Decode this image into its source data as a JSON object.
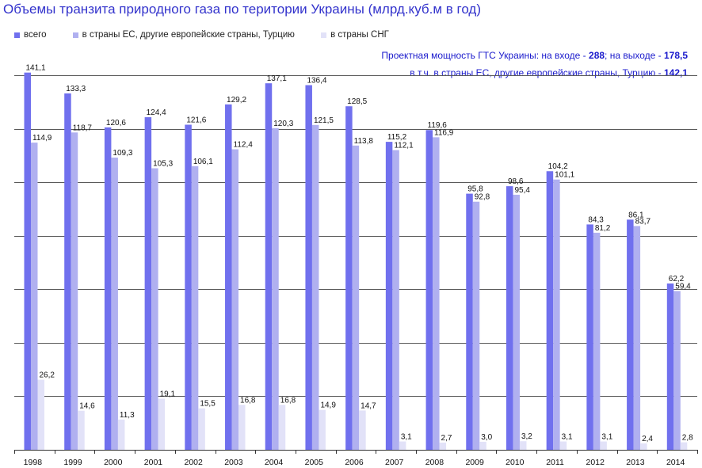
{
  "chart_data": {
    "type": "bar",
    "title": "Объемы транзита природного газа по територии Украины (млрд.куб.м в год)",
    "categories": [
      "1998",
      "1999",
      "2000",
      "2001",
      "2002",
      "2003",
      "2004",
      "2005",
      "2006",
      "2007",
      "2008",
      "2009",
      "2010",
      "2011",
      "2012",
      "2013",
      "2014"
    ],
    "series": [
      {
        "name": "всего",
        "color": "#7070ee",
        "values": [
          141.1,
          133.3,
          120.6,
          124.4,
          121.6,
          129.2,
          137.1,
          136.4,
          128.5,
          115.2,
          119.6,
          95.8,
          98.6,
          104.2,
          84.3,
          86.1,
          62.2
        ],
        "labels": [
          "141,1",
          "133,3",
          "120,6",
          "124,4",
          "121,6",
          "129,2",
          "137,1",
          "136,4",
          "128,5",
          "115,2",
          "119,6",
          "95,8",
          "98,6",
          "104,2",
          "84,3",
          "86,1",
          "62,2"
        ]
      },
      {
        "name": "в страны ЕС, другие европейские страны, Турцию",
        "color": "#b0b0f0",
        "values": [
          114.9,
          118.7,
          109.3,
          105.3,
          106.1,
          112.4,
          120.3,
          121.5,
          113.8,
          112.1,
          116.9,
          92.8,
          95.4,
          101.1,
          81.2,
          83.7,
          59.4
        ],
        "labels": [
          "114,9",
          "118,7",
          "109,3",
          "105,3",
          "106,1",
          "112,4",
          "120,3",
          "121,5",
          "113,8",
          "112,1",
          "116,9",
          "92,8",
          "95,4",
          "101,1",
          "81,2",
          "83,7",
          "59,4"
        ]
      },
      {
        "name": "в страны СНГ",
        "color": "#e2e2f8",
        "values": [
          26.2,
          14.6,
          11.3,
          19.1,
          15.5,
          16.8,
          16.8,
          14.9,
          14.7,
          3.1,
          2.7,
          3.0,
          3.2,
          3.1,
          3.1,
          2.4,
          2.8
        ],
        "labels": [
          "26,2",
          "14,6",
          "11,3",
          "19,1",
          "15,5",
          "16,8",
          "16,8",
          "14,9",
          "14,7",
          "3,1",
          "2,7",
          "3,0",
          "3,2",
          "3,1",
          "3,1",
          "2,4",
          "2,8"
        ]
      }
    ],
    "ylim": [
      0,
      140
    ],
    "grid": true,
    "legend": "top-left"
  },
  "note": {
    "line1_prefix": "Проектная мощность ГТС Украины: на входе - ",
    "line1_input": "288",
    "line1_mid": "; на выходе - ",
    "line1_output": "178,5",
    "line2_prefix": "в т.ч. в страны ЕС, другие европейские страны, Турцию - ",
    "line2_value": "142,1"
  }
}
